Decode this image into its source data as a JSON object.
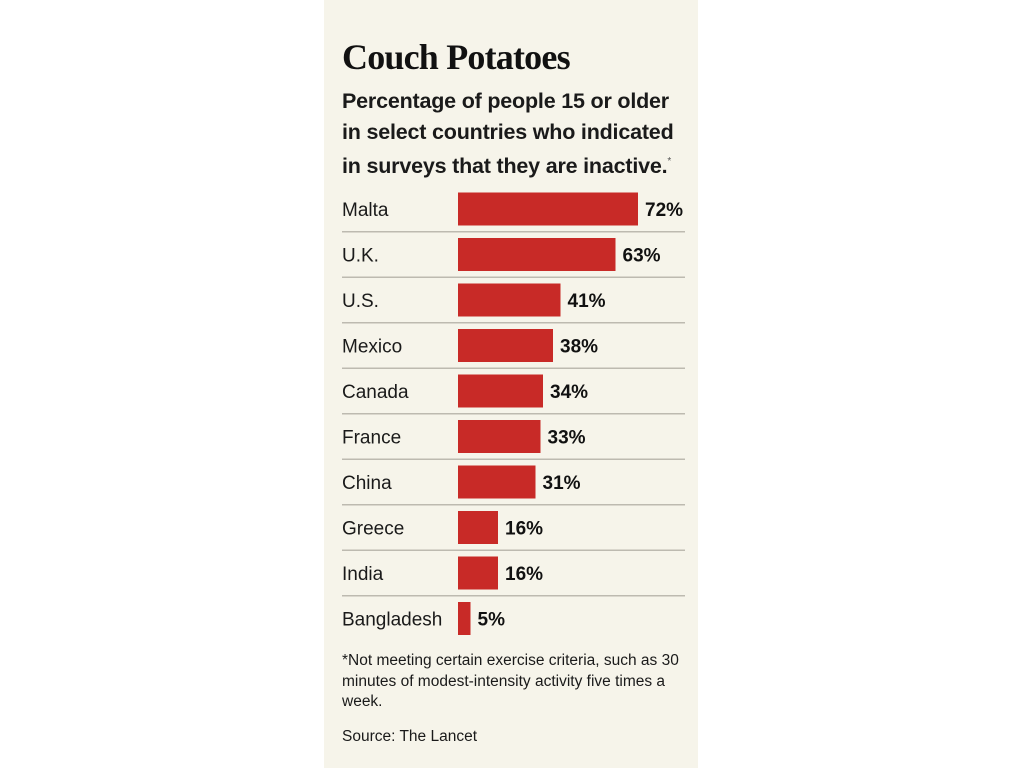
{
  "title": "Couch Potatoes",
  "subtitle": "Percentage of people 15 or older in select countries who indicated in surveys that they are inactive.",
  "subtitle_marker": "*",
  "footnote": "*Not meeting certain exercise criteria, such as 30 minutes of modest-intensity activity five times a week.",
  "source": "Source: The Lancet",
  "colors": {
    "bar": "#c82a27",
    "background": "#f6f4ea",
    "divider": "#bdbab0"
  },
  "chart_data": {
    "type": "bar",
    "orientation": "horizontal",
    "categories": [
      "Malta",
      "U.K.",
      "U.S.",
      "Mexico",
      "Canada",
      "France",
      "China",
      "Greece",
      "India",
      "Bangladesh"
    ],
    "values": [
      72,
      63,
      41,
      38,
      34,
      33,
      31,
      16,
      16,
      5
    ],
    "value_labels": [
      "72%",
      "63%",
      "41%",
      "38%",
      "34%",
      "33%",
      "31%",
      "16%",
      "16%",
      "5%"
    ],
    "grid": false
  }
}
